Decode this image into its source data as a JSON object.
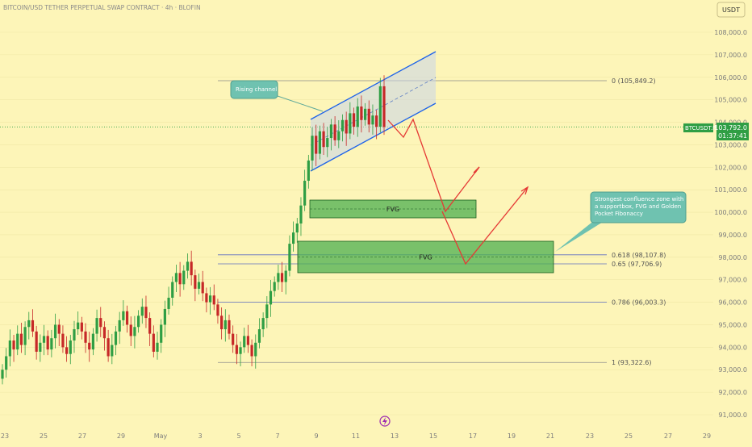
{
  "header": {
    "title": "BITCOIN/USD TETHER PERPETUAL SWAP CONTRACT · 4h · BLOFIN",
    "currency_button": "USDT"
  },
  "colors": {
    "background": "#fdf5b8",
    "bull": "#2f9e44",
    "bear": "#c62828",
    "channel": "#1e63e9",
    "fvg_fill": "#4caf50",
    "projection": "#e53935",
    "note": "#6fc2b0",
    "price_tag": "#2f9e44"
  },
  "chart_data": {
    "type": "candlestick",
    "symbol": "BTCUSDT.P",
    "interval": "4h",
    "ylim": [
      91000,
      108000
    ],
    "y_ticks": [
      "108,000.0",
      "107,000.0",
      "106,000.0",
      "105,000.0",
      "104,000.0",
      "103,000.0",
      "102,000.0",
      "101,000.0",
      "100,000.0",
      "99,000.0",
      "98,000.0",
      "97,000.0",
      "96,000.0",
      "95,000.0",
      "94,000.0",
      "93,000.0",
      "92,000.0",
      "91,000.0"
    ],
    "x_ticks": [
      "23",
      "25",
      "27",
      "29",
      "May",
      "3",
      "5",
      "7",
      "9",
      "11",
      "13",
      "15",
      "17",
      "19",
      "21",
      "23",
      "25",
      "27",
      "29"
    ],
    "current_price": {
      "symbol": "BTCUSDT.P",
      "price": "103,792.0",
      "countdown": "01:37:41"
    },
    "fib_levels": [
      {
        "label": "0 (105,849.2)",
        "value": 105849.2
      },
      {
        "label": "0.618 (98,107.8)",
        "value": 98107.8
      },
      {
        "label": "0.65 (97,706.9)",
        "value": 97706.9
      },
      {
        "label": "0.786 (96,003.3)",
        "value": 96003.3
      },
      {
        "label": "1 (93,322.6)",
        "value": 93322.6
      }
    ],
    "fvg_zones": [
      {
        "label": "FVG",
        "from_date": "May 8",
        "to_date": "May 16",
        "low": 99800,
        "high": 100600
      },
      {
        "label": "FVG",
        "from_date": "May 8",
        "to_date": "May 21",
        "low": 97300,
        "high": 98700
      }
    ],
    "rising_channel": {
      "upper": [
        [
          "May 8",
          104100
        ],
        [
          "May 14",
          107200
        ]
      ],
      "lower": [
        [
          "May 8",
          102000
        ],
        [
          "May 14",
          104900
        ]
      ],
      "mid": [
        [
          "May 8",
          103050
        ],
        [
          "May 14",
          106050
        ]
      ]
    },
    "projections": [
      {
        "points": [
          [
            "May 12",
            104300
          ],
          [
            "May 13",
            103600
          ],
          [
            "May 13",
            104400
          ],
          [
            "May 15",
            100100
          ],
          [
            "May 17",
            102100
          ]
        ]
      },
      {
        "points": [
          [
            "May 15",
            100100
          ],
          [
            "May 16",
            97700
          ],
          [
            "May 20",
            101200
          ]
        ]
      }
    ],
    "annotations": [
      {
        "id": "channel-note",
        "lines": [
          "Rising channel"
        ]
      },
      {
        "id": "confluence-note",
        "lines": [
          "Strongest confluence zone with",
          "a supportbox, FVG and Golden",
          "Pocket Fibonaccy"
        ]
      }
    ],
    "candles_summary": "4h candles from Apr 22 to May 12 2025: range 92k-95.5k late April, dip to ~93.3k May 6, rally to ~104k May 8-9, consolidation 103-105.8k in a rising channel"
  }
}
